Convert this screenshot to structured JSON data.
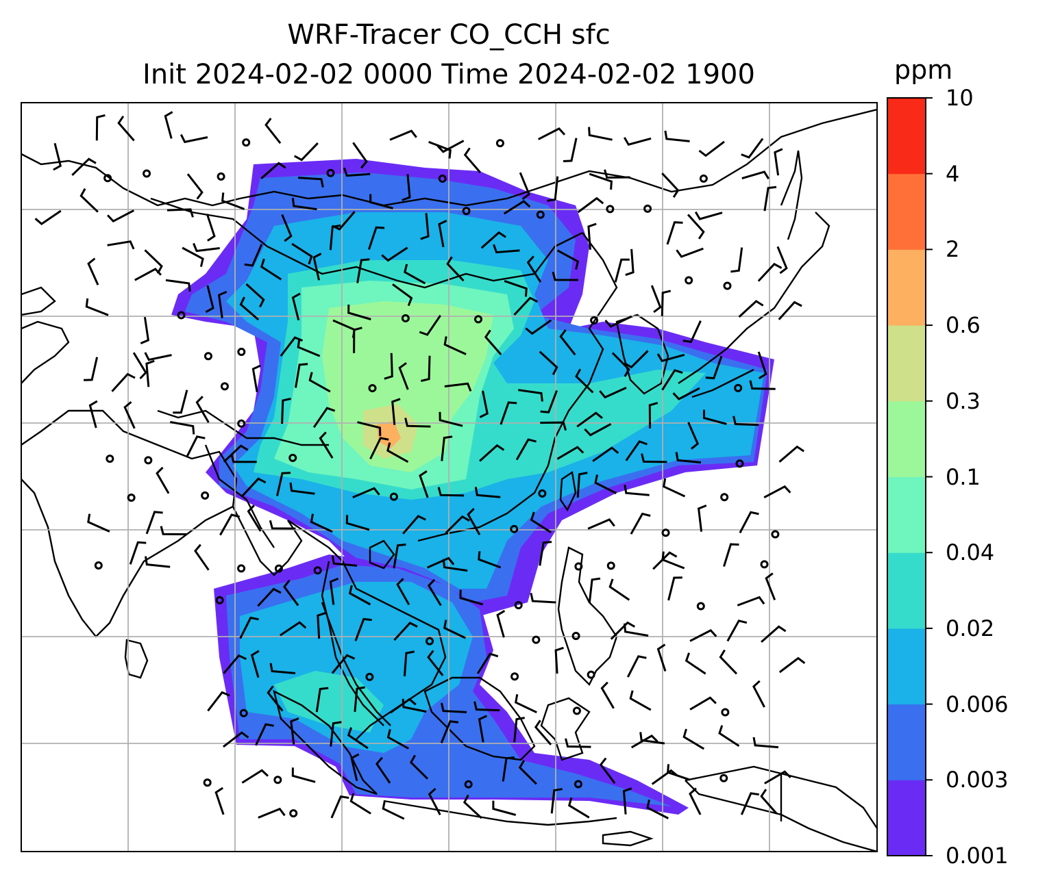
{
  "title": {
    "line1": "WRF-Tracer CO_CCH sfc",
    "line2": "Init 2024-02-02 0000 Time 2024-02-02 1900"
  },
  "colorbar": {
    "unit": "ppm",
    "levels": [
      "0.001",
      "0.003",
      "0.006",
      "0.02",
      "0.04",
      "0.1",
      "0.3",
      "0.6",
      "2",
      "4",
      "10"
    ],
    "colors": [
      "#6a2cf5",
      "#3a70ef",
      "#1ab2e8",
      "#36dccb",
      "#6ff5be",
      "#9cf79a",
      "#cfe08a",
      "#fcb060",
      "#ff7038",
      "#fa2a18"
    ]
  },
  "map": {
    "grid_color": "#b0b0b0",
    "coastline_color": "#000000",
    "legend": "colorbar-right"
  }
}
